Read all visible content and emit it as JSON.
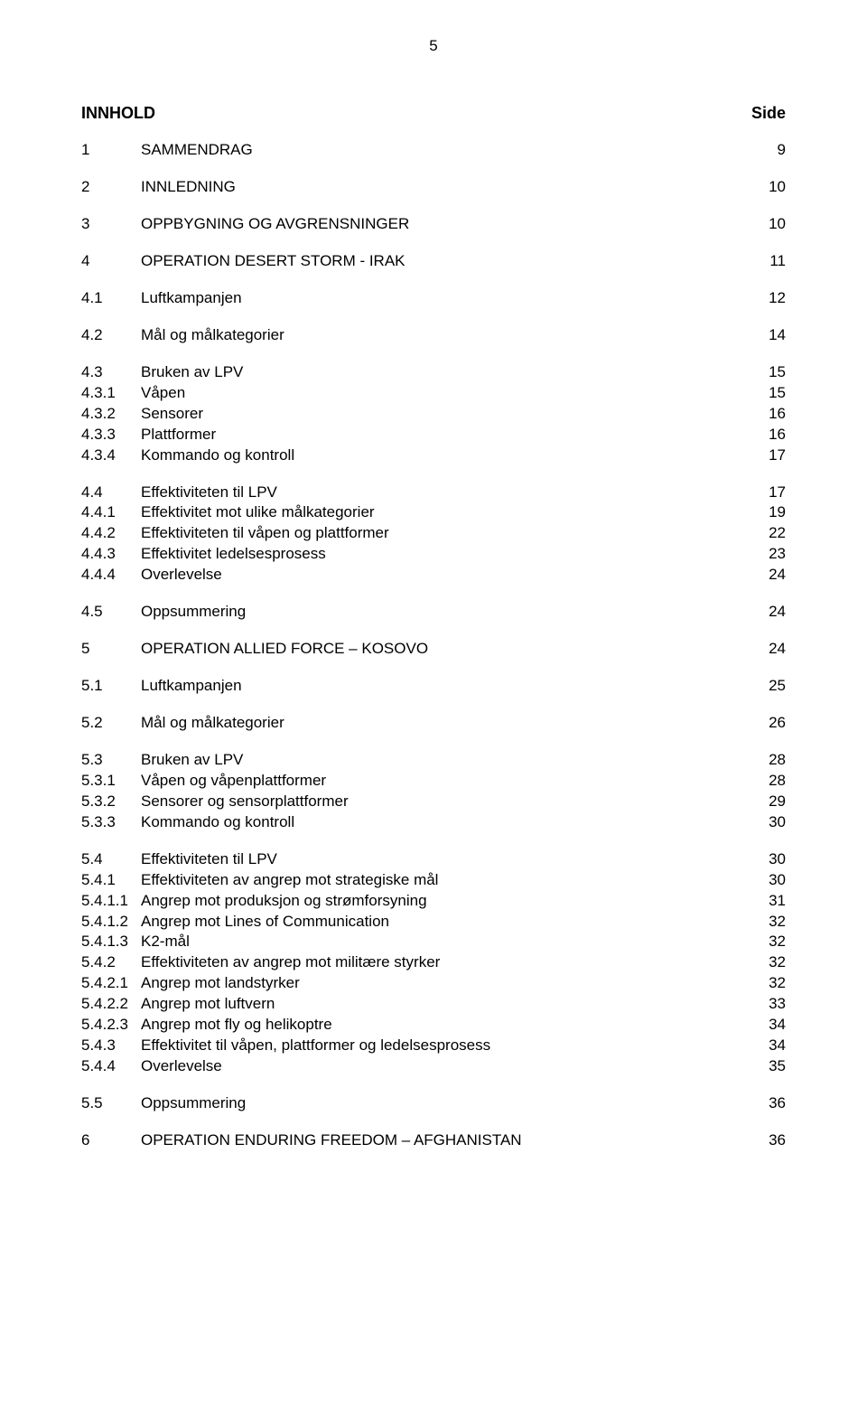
{
  "page_number": "5",
  "heading_left": "INNHOLD",
  "heading_right": "Side",
  "entries": [
    {
      "num": "1",
      "title": "SAMMENDRAG",
      "page": "9",
      "level": 0
    },
    {
      "num": "2",
      "title": "INNLEDNING",
      "page": "10",
      "level": 0
    },
    {
      "num": "3",
      "title": "OPPBYGNING OG  AVGRENSNINGER",
      "page": "10",
      "level": 0
    },
    {
      "num": "4",
      "title": "OPERATION DESERT STORM - IRAK",
      "page": "11",
      "level": 0
    },
    {
      "num": "4.1",
      "title": "Luftkampanjen",
      "page": "12",
      "level": 1
    },
    {
      "num": "4.2",
      "title": "Mål og målkategorier",
      "page": "14",
      "level": 1
    },
    {
      "num": "4.3",
      "title": "Bruken av LPV",
      "page": "15",
      "level": 1
    },
    {
      "num": "4.3.1",
      "title": "Våpen",
      "page": "15",
      "level": 2
    },
    {
      "num": "4.3.2",
      "title": "Sensorer",
      "page": "16",
      "level": 2
    },
    {
      "num": "4.3.3",
      "title": "Plattformer",
      "page": "16",
      "level": 2
    },
    {
      "num": "4.3.4",
      "title": "Kommando og kontroll",
      "page": "17",
      "level": 2
    },
    {
      "num": "4.4",
      "title": "Effektiviteten til LPV",
      "page": "17",
      "level": 1
    },
    {
      "num": "4.4.1",
      "title": "Effektivitet mot ulike målkategorier",
      "page": "19",
      "level": 2
    },
    {
      "num": "4.4.2",
      "title": "Effektiviteten til våpen og plattformer",
      "page": "22",
      "level": 2
    },
    {
      "num": "4.4.3",
      "title": "Effektivitet ledelsesprosess",
      "page": "23",
      "level": 2
    },
    {
      "num": "4.4.4",
      "title": "Overlevelse",
      "page": "24",
      "level": 2
    },
    {
      "num": "4.5",
      "title": "Oppsummering",
      "page": "24",
      "level": 1
    },
    {
      "num": "5",
      "title": "OPERATION ALLIED FORCE – KOSOVO",
      "page": "24",
      "level": 0
    },
    {
      "num": "5.1",
      "title": "Luftkampanjen",
      "page": "25",
      "level": 1
    },
    {
      "num": "5.2",
      "title": "Mål og målkategorier",
      "page": "26",
      "level": 1
    },
    {
      "num": "5.3",
      "title": "Bruken av LPV",
      "page": "28",
      "level": 1
    },
    {
      "num": "5.3.1",
      "title": "Våpen og våpenplattformer",
      "page": "28",
      "level": 2
    },
    {
      "num": "5.3.2",
      "title": "Sensorer og sensorplattformer",
      "page": "29",
      "level": 2
    },
    {
      "num": "5.3.3",
      "title": "Kommando og kontroll",
      "page": "30",
      "level": 2
    },
    {
      "num": "5.4",
      "title": "Effektiviteten til LPV",
      "page": "30",
      "level": 1
    },
    {
      "num": "5.4.1",
      "title": "Effektiviteten av angrep mot strategiske mål",
      "page": "30",
      "level": 2
    },
    {
      "num": "5.4.1.1",
      "title": "Angrep mot produksjon og strømforsyning",
      "page": "31",
      "level": 3
    },
    {
      "num": "5.4.1.2",
      "title": "Angrep mot Lines of Communication",
      "page": "32",
      "level": 3
    },
    {
      "num": "5.4.1.3",
      "title": "K2-mål",
      "page": "32",
      "level": 3
    },
    {
      "num": "5.4.2",
      "title": "Effektiviteten av angrep mot militære styrker",
      "page": "32",
      "level": 2
    },
    {
      "num": "5.4.2.1",
      "title": "Angrep mot landstyrker",
      "page": "32",
      "level": 3
    },
    {
      "num": "5.4.2.2",
      "title": "Angrep mot luftvern",
      "page": "33",
      "level": 3
    },
    {
      "num": "5.4.2.3",
      "title": "Angrep mot fly og helikoptre",
      "page": "34",
      "level": 3
    },
    {
      "num": "5.4.3",
      "title": "Effektivitet til våpen, plattformer og ledelsesprosess",
      "page": "34",
      "level": 2
    },
    {
      "num": "5.4.4",
      "title": "Overlevelse",
      "page": "35",
      "level": 2
    },
    {
      "num": "5.5",
      "title": "Oppsummering",
      "page": "36",
      "level": 1
    },
    {
      "num": "6",
      "title": "OPERATION ENDURING FREEDOM – AFGHANISTAN",
      "page": "36",
      "level": 0
    }
  ]
}
